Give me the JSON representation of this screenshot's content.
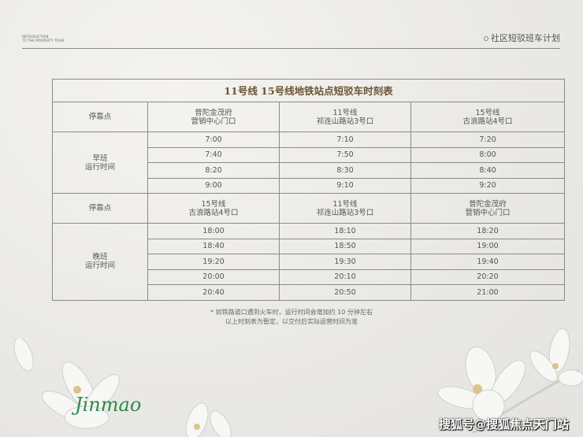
{
  "header": {
    "intro_line1": "INTRODUCTION",
    "intro_line2": "TO THE PROPERTY TEAM",
    "section_title": "社区短驳班车计划"
  },
  "table": {
    "title": "11号线  15号线地铁站点短驳车时刻表",
    "morning": {
      "stop_label": "停靠点",
      "stops": [
        [
          "普陀金茂府",
          "营销中心门口"
        ],
        [
          "11号线",
          "祁连山路站3号口"
        ],
        [
          "15号线",
          "古浪路站4号口"
        ]
      ],
      "label": [
        "早班",
        "运行时间"
      ],
      "rows": [
        [
          "7:00",
          "7:10",
          "7:20"
        ],
        [
          "7:40",
          "7:50",
          "8:00"
        ],
        [
          "8:20",
          "8:30",
          "8:40"
        ],
        [
          "9:00",
          "9:10",
          "9:20"
        ]
      ]
    },
    "evening": {
      "stop_label": "停靠点",
      "stops": [
        [
          "15号线",
          "古浪路站4号口"
        ],
        [
          "11号线",
          "祁连山路站3号口"
        ],
        [
          "普陀金茂府",
          "营销中心门口"
        ]
      ],
      "label": [
        "晚班",
        "运行时间"
      ],
      "rows": [
        [
          "18:00",
          "18:10",
          "18:20"
        ],
        [
          "18:40",
          "18:50",
          "19:00"
        ],
        [
          "19:20",
          "19:30",
          "19:40"
        ],
        [
          "20:00",
          "20:10",
          "20:20"
        ],
        [
          "20:40",
          "20:50",
          "21:00"
        ]
      ]
    }
  },
  "notes": [
    "* 如铁路道口遇到火车时，运行时间会增加约 10 分钟左右",
    "以上时刻表为暂定，以交付后实际运营时间为准"
  ],
  "logo_text": "Jinmao",
  "watermark": "搜狐号@搜狐焦点天门站"
}
